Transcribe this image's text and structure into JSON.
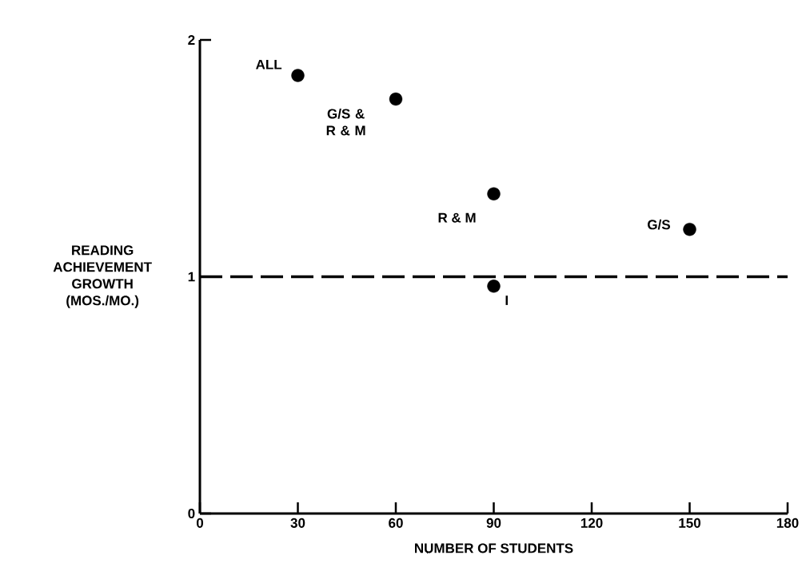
{
  "chart_data": {
    "type": "scatter",
    "xlabel": "NUMBER OF STUDENTS",
    "ylabel": "READING ACHIEVEMENT GROWTH (MOS./MO.)",
    "series": [
      {
        "color": "#000000",
        "x": [
          30,
          60,
          90,
          150,
          90
        ],
        "values": [
          1.85,
          1.75,
          1.35,
          1.2,
          0.96
        ]
      }
    ],
    "marker": "circle",
    "xlim": [
      0,
      180
    ],
    "xticks": [
      0,
      30,
      60,
      90,
      120,
      150,
      180
    ],
    "ylim": [
      0,
      2
    ],
    "yticks": [
      0,
      1,
      2
    ],
    "ref_lines": [
      {
        "axis": "y",
        "value": 1,
        "line_style": "dashed",
        "color": "#000000"
      }
    ],
    "annotations": [
      {
        "text": "ALL",
        "x": 30,
        "y": 1.85
      },
      {
        "text": "G/S & R & M",
        "x": 60,
        "y": 1.75
      },
      {
        "text": "R & M",
        "x": 90,
        "y": 1.35
      },
      {
        "text": "G/S",
        "x": 150,
        "y": 1.2
      },
      {
        "text": "I",
        "x": 90,
        "y": 0.96
      }
    ]
  }
}
